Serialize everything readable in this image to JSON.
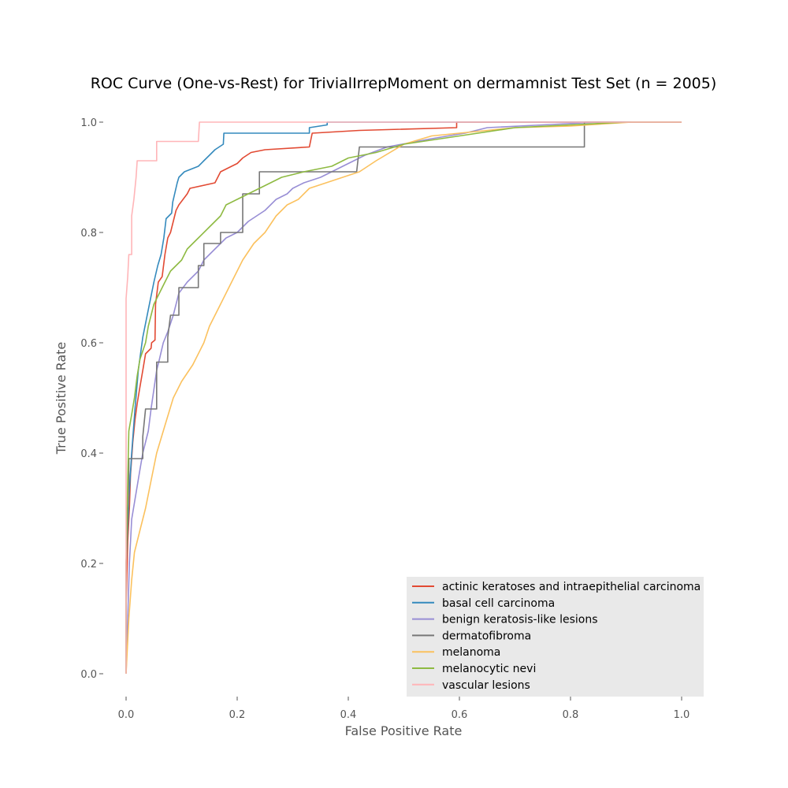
{
  "chart_data": {
    "type": "line",
    "title": "ROC Curve (One-vs-Rest) for TrivialIrrepMoment on dermamnist Test Set (n = 2005)",
    "xlabel": "False Positive Rate",
    "ylabel": "True Positive Rate",
    "xlim": [
      0,
      1
    ],
    "ylim": [
      0,
      1
    ],
    "x_ticks": [
      "0.0",
      "0.2",
      "0.4",
      "0.6",
      "0.8",
      "1.0"
    ],
    "y_ticks": [
      "0.0",
      "0.2",
      "0.4",
      "0.6",
      "0.8",
      "1.0"
    ],
    "grid": false,
    "legend_position": "lower-right",
    "series": [
      {
        "name": "actinic keratoses and intraepithelial carcinoma",
        "color": "#E24A33",
        "points": [
          [
            0,
            0
          ],
          [
            0,
            0.12
          ],
          [
            0.003,
            0.24
          ],
          [
            0.006,
            0.3
          ],
          [
            0.008,
            0.36
          ],
          [
            0.012,
            0.42
          ],
          [
            0.016,
            0.46
          ],
          [
            0.02,
            0.49
          ],
          [
            0.025,
            0.52
          ],
          [
            0.03,
            0.55
          ],
          [
            0.035,
            0.58
          ],
          [
            0.045,
            0.59
          ],
          [
            0.046,
            0.6
          ],
          [
            0.052,
            0.605
          ],
          [
            0.053,
            0.67
          ],
          [
            0.058,
            0.71
          ],
          [
            0.065,
            0.72
          ],
          [
            0.07,
            0.76
          ],
          [
            0.075,
            0.79
          ],
          [
            0.08,
            0.8
          ],
          [
            0.085,
            0.82
          ],
          [
            0.09,
            0.84
          ],
          [
            0.095,
            0.85
          ],
          [
            0.11,
            0.87
          ],
          [
            0.115,
            0.88
          ],
          [
            0.16,
            0.89
          ],
          [
            0.17,
            0.91
          ],
          [
            0.19,
            0.92
          ],
          [
            0.2,
            0.925
          ],
          [
            0.21,
            0.935
          ],
          [
            0.225,
            0.945
          ],
          [
            0.25,
            0.95
          ],
          [
            0.33,
            0.955
          ],
          [
            0.335,
            0.98
          ],
          [
            0.42,
            0.985
          ],
          [
            0.595,
            0.99
          ],
          [
            0.595,
            1.0
          ],
          [
            1.0,
            1.0
          ]
        ]
      },
      {
        "name": "basal cell carcinoma",
        "color": "#348ABD",
        "points": [
          [
            0,
            0
          ],
          [
            0,
            0.2
          ],
          [
            0.004,
            0.3
          ],
          [
            0.01,
            0.4
          ],
          [
            0.016,
            0.48
          ],
          [
            0.022,
            0.55
          ],
          [
            0.03,
            0.61
          ],
          [
            0.04,
            0.66
          ],
          [
            0.05,
            0.71
          ],
          [
            0.057,
            0.74
          ],
          [
            0.063,
            0.76
          ],
          [
            0.068,
            0.79
          ],
          [
            0.072,
            0.825
          ],
          [
            0.082,
            0.835
          ],
          [
            0.084,
            0.855
          ],
          [
            0.092,
            0.89
          ],
          [
            0.095,
            0.9
          ],
          [
            0.105,
            0.91
          ],
          [
            0.13,
            0.92
          ],
          [
            0.14,
            0.93
          ],
          [
            0.15,
            0.94
          ],
          [
            0.16,
            0.95
          ],
          [
            0.175,
            0.96
          ],
          [
            0.176,
            0.98
          ],
          [
            0.33,
            0.98
          ],
          [
            0.33,
            0.99
          ],
          [
            0.362,
            0.995
          ],
          [
            0.362,
            1.0
          ],
          [
            1.0,
            1.0
          ]
        ]
      },
      {
        "name": "benign keratosis-like lesions",
        "color": "#988ED5",
        "points": [
          [
            0,
            0
          ],
          [
            0.003,
            0.1
          ],
          [
            0.006,
            0.2
          ],
          [
            0.01,
            0.28
          ],
          [
            0.015,
            0.31
          ],
          [
            0.02,
            0.34
          ],
          [
            0.025,
            0.37
          ],
          [
            0.03,
            0.4
          ],
          [
            0.04,
            0.44
          ],
          [
            0.045,
            0.48
          ],
          [
            0.055,
            0.55
          ],
          [
            0.06,
            0.57
          ],
          [
            0.067,
            0.6
          ],
          [
            0.075,
            0.62
          ],
          [
            0.085,
            0.65
          ],
          [
            0.095,
            0.69
          ],
          [
            0.11,
            0.71
          ],
          [
            0.13,
            0.73
          ],
          [
            0.14,
            0.75
          ],
          [
            0.16,
            0.77
          ],
          [
            0.18,
            0.79
          ],
          [
            0.2,
            0.8
          ],
          [
            0.22,
            0.82
          ],
          [
            0.25,
            0.84
          ],
          [
            0.27,
            0.86
          ],
          [
            0.29,
            0.87
          ],
          [
            0.3,
            0.88
          ],
          [
            0.32,
            0.89
          ],
          [
            0.35,
            0.9
          ],
          [
            0.37,
            0.91
          ],
          [
            0.4,
            0.925
          ],
          [
            0.43,
            0.94
          ],
          [
            0.47,
            0.955
          ],
          [
            0.55,
            0.97
          ],
          [
            0.61,
            0.98
          ],
          [
            0.65,
            0.99
          ],
          [
            0.75,
            0.995
          ],
          [
            0.85,
            1.0
          ],
          [
            1.0,
            1.0
          ]
        ]
      },
      {
        "name": "dermatofibroma",
        "color": "#777777",
        "points": [
          [
            0,
            0
          ],
          [
            0,
            0.2
          ],
          [
            0.005,
            0.3
          ],
          [
            0.005,
            0.39
          ],
          [
            0.03,
            0.39
          ],
          [
            0.03,
            0.43
          ],
          [
            0.035,
            0.48
          ],
          [
            0.055,
            0.48
          ],
          [
            0.055,
            0.565
          ],
          [
            0.075,
            0.565
          ],
          [
            0.075,
            0.61
          ],
          [
            0.08,
            0.65
          ],
          [
            0.095,
            0.65
          ],
          [
            0.095,
            0.7
          ],
          [
            0.13,
            0.7
          ],
          [
            0.13,
            0.74
          ],
          [
            0.14,
            0.74
          ],
          [
            0.14,
            0.78
          ],
          [
            0.17,
            0.78
          ],
          [
            0.17,
            0.8
          ],
          [
            0.21,
            0.8
          ],
          [
            0.21,
            0.825
          ],
          [
            0.21,
            0.87
          ],
          [
            0.24,
            0.87
          ],
          [
            0.24,
            0.91
          ],
          [
            0.415,
            0.91
          ],
          [
            0.42,
            0.955
          ],
          [
            0.825,
            0.955
          ],
          [
            0.825,
            1.0
          ],
          [
            1.0,
            1.0
          ]
        ]
      },
      {
        "name": "melanoma",
        "color": "#FBC15E",
        "points": [
          [
            0,
            0
          ],
          [
            0.005,
            0.1
          ],
          [
            0.01,
            0.17
          ],
          [
            0.015,
            0.22
          ],
          [
            0.025,
            0.26
          ],
          [
            0.035,
            0.3
          ],
          [
            0.045,
            0.35
          ],
          [
            0.055,
            0.4
          ],
          [
            0.07,
            0.45
          ],
          [
            0.085,
            0.5
          ],
          [
            0.1,
            0.53
          ],
          [
            0.12,
            0.56
          ],
          [
            0.14,
            0.6
          ],
          [
            0.15,
            0.63
          ],
          [
            0.17,
            0.67
          ],
          [
            0.19,
            0.71
          ],
          [
            0.21,
            0.75
          ],
          [
            0.23,
            0.78
          ],
          [
            0.25,
            0.8
          ],
          [
            0.27,
            0.83
          ],
          [
            0.29,
            0.85
          ],
          [
            0.31,
            0.86
          ],
          [
            0.33,
            0.88
          ],
          [
            0.36,
            0.89
          ],
          [
            0.39,
            0.9
          ],
          [
            0.42,
            0.91
          ],
          [
            0.45,
            0.93
          ],
          [
            0.5,
            0.96
          ],
          [
            0.55,
            0.975
          ],
          [
            0.6,
            0.98
          ],
          [
            0.65,
            0.985
          ],
          [
            0.7,
            0.99
          ],
          [
            0.8,
            0.993
          ],
          [
            0.91,
            1.0
          ],
          [
            1.0,
            1.0
          ]
        ]
      },
      {
        "name": "melanocytic nevi",
        "color": "#8EBA42",
        "points": [
          [
            0,
            0
          ],
          [
            0,
            0.2
          ],
          [
            0.003,
            0.35
          ],
          [
            0.005,
            0.44
          ],
          [
            0.01,
            0.47
          ],
          [
            0.015,
            0.5
          ],
          [
            0.02,
            0.54
          ],
          [
            0.025,
            0.57
          ],
          [
            0.035,
            0.6
          ],
          [
            0.04,
            0.63
          ],
          [
            0.05,
            0.67
          ],
          [
            0.06,
            0.69
          ],
          [
            0.07,
            0.71
          ],
          [
            0.08,
            0.73
          ],
          [
            0.1,
            0.75
          ],
          [
            0.11,
            0.77
          ],
          [
            0.13,
            0.79
          ],
          [
            0.15,
            0.81
          ],
          [
            0.17,
            0.83
          ],
          [
            0.18,
            0.85
          ],
          [
            0.2,
            0.86
          ],
          [
            0.23,
            0.875
          ],
          [
            0.25,
            0.885
          ],
          [
            0.28,
            0.9
          ],
          [
            0.32,
            0.91
          ],
          [
            0.37,
            0.92
          ],
          [
            0.4,
            0.935
          ],
          [
            0.45,
            0.945
          ],
          [
            0.5,
            0.96
          ],
          [
            0.6,
            0.975
          ],
          [
            0.7,
            0.99
          ],
          [
            0.8,
            0.995
          ],
          [
            0.9,
            1.0
          ],
          [
            1.0,
            1.0
          ]
        ]
      },
      {
        "name": "vascular lesions",
        "color": "#FFB5B8",
        "points": [
          [
            0,
            0
          ],
          [
            0,
            0.68
          ],
          [
            0.003,
            0.72
          ],
          [
            0.005,
            0.76
          ],
          [
            0.01,
            0.76
          ],
          [
            0.01,
            0.83
          ],
          [
            0.014,
            0.86
          ],
          [
            0.018,
            0.9
          ],
          [
            0.02,
            0.93
          ],
          [
            0.055,
            0.93
          ],
          [
            0.055,
            0.965
          ],
          [
            0.13,
            0.965
          ],
          [
            0.132,
            1.0
          ],
          [
            1.0,
            1.0
          ]
        ]
      }
    ]
  }
}
